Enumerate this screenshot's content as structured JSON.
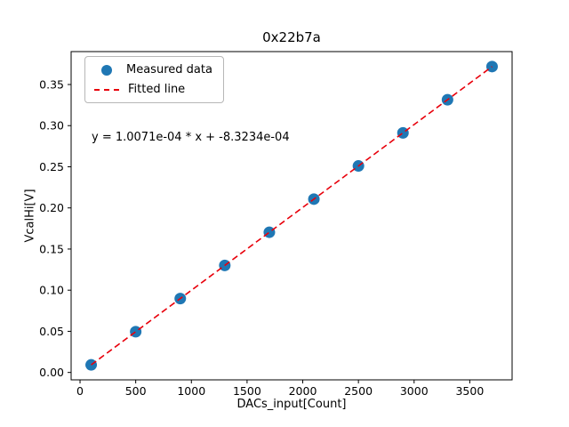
{
  "figure": {
    "title": "0x22b7a",
    "annotation": "y = 1.0071e-04 * x + -8.3234e-04"
  },
  "legend": {
    "measured_label": "Measured data",
    "fitted_label": "Fitted line"
  },
  "colors": {
    "marker": "#1f77b4",
    "fit_line": "#e8000b",
    "axes": "#000000"
  },
  "chart_data": {
    "type": "scatter",
    "title": "0x22b7a",
    "xlabel": "DACs_input[Count]",
    "ylabel": "VcalHi[V]",
    "x": [
      100,
      500,
      900,
      1300,
      1700,
      2100,
      2500,
      2900,
      3300,
      3700
    ],
    "y": [
      0.0092,
      0.0495,
      0.0898,
      0.1301,
      0.1704,
      0.2107,
      0.251,
      0.2912,
      0.3315,
      0.3718
    ],
    "series": [
      {
        "name": "Measured data",
        "type": "scatter",
        "marker": "circle",
        "color": "#1f77b4"
      },
      {
        "name": "Fitted line",
        "type": "line",
        "style": "dashed",
        "color": "#e8000b",
        "slope": 0.00010071,
        "intercept": -0.00083234,
        "equation": "y = 1.0071e-04 * x + -8.3234e-04"
      }
    ],
    "xlim": [
      -80,
      3880
    ],
    "ylim": [
      -0.009,
      0.39
    ],
    "xticks": [
      0,
      500,
      1000,
      1500,
      2000,
      2500,
      3000,
      3500
    ],
    "yticks": [
      0.0,
      0.05,
      0.1,
      0.15,
      0.2,
      0.25,
      0.3,
      0.35
    ],
    "grid": false,
    "legend_position": "upper left"
  }
}
